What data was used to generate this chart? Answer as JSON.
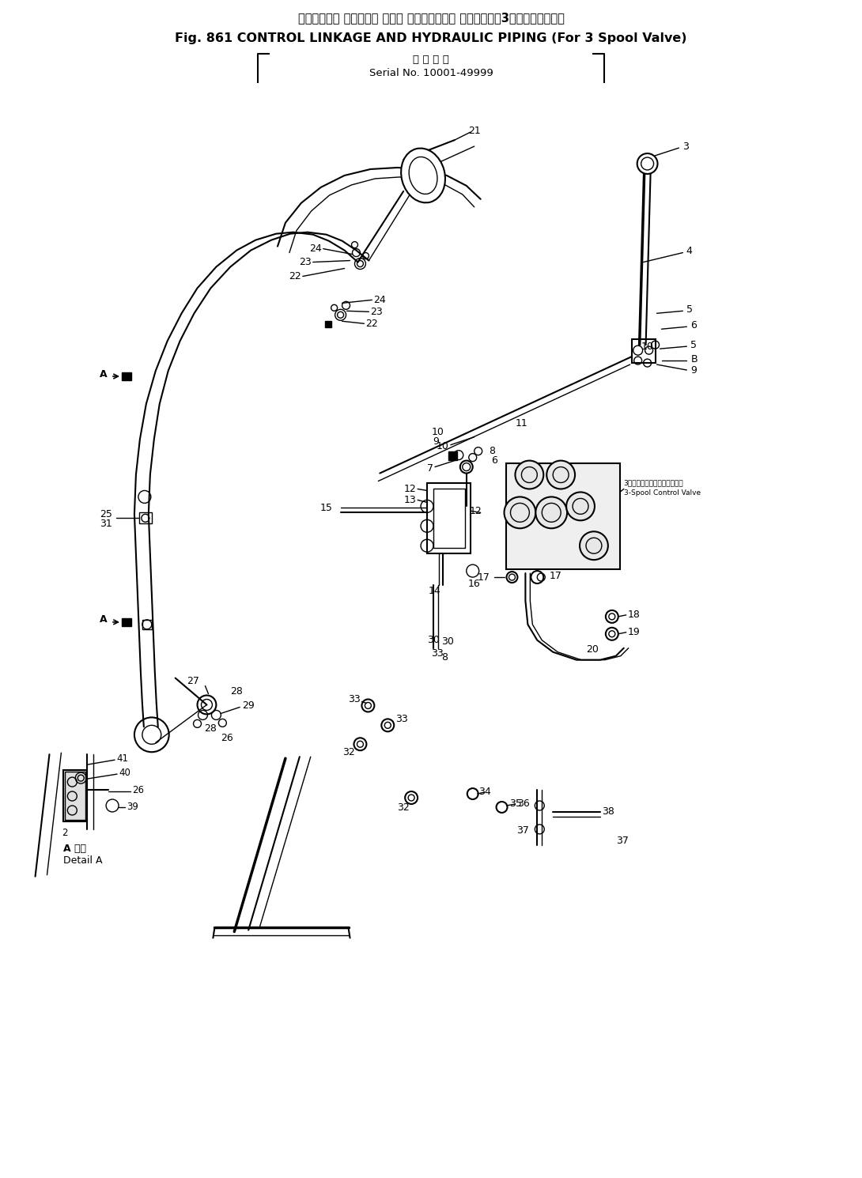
{
  "title_japanese": "コントロール リンケージ および ハイドロリック パイピング　3スプールバルブ用",
  "title_english": "Fig. 861 CONTROL LINKAGE AND HYDRAULIC PIPING (For 3 Spool Valve)",
  "subtitle_japanese": "適 用 号 慣",
  "subtitle_serial": "Serial No. 10001-49999",
  "background_color": "#ffffff",
  "text_color": "#000000",
  "fig_width": 10.9,
  "fig_height": 14.9,
  "dpi": 100,
  "detail_label_jp": "A 詳細",
  "detail_label_en": "Detail A",
  "valve_label_jp": "3スプールコントロールバルブ",
  "valve_label_en": "3-Spool Control Valve"
}
